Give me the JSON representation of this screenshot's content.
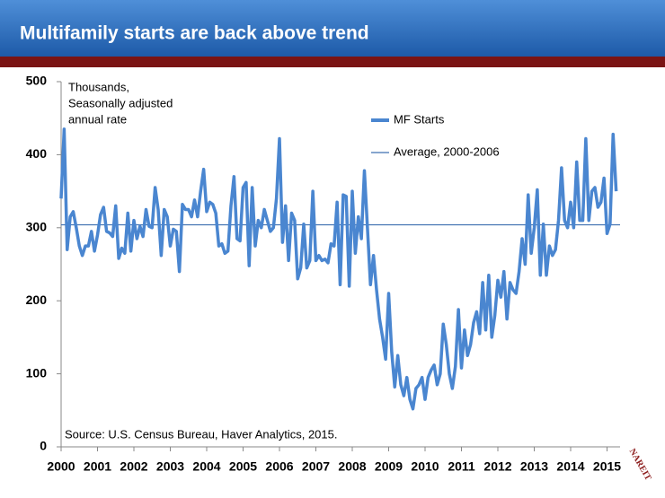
{
  "chart_data": {
    "type": "line",
    "title": "Multifamily starts are back above trend",
    "annotation": [
      "Thousands,",
      "Seasonally adjusted",
      "annual rate"
    ],
    "source": "Source: U.S. Census Bureau, Haver Analytics, 2015.",
    "logo": "NAREIT",
    "categories": [
      "2000",
      null,
      null,
      null,
      null,
      null,
      null,
      null,
      null,
      null,
      null,
      null,
      "2001",
      null,
      null,
      null,
      null,
      null,
      null,
      null,
      null,
      null,
      null,
      null,
      "2002",
      null,
      null,
      null,
      null,
      null,
      null,
      null,
      null,
      null,
      null,
      null,
      "2003",
      null,
      null,
      null,
      null,
      null,
      null,
      null,
      null,
      null,
      null,
      null,
      "2004",
      null,
      null,
      null,
      null,
      null,
      null,
      null,
      null,
      null,
      null,
      null,
      "2005",
      null,
      null,
      null,
      null,
      null,
      null,
      null,
      null,
      null,
      null,
      null,
      "2006",
      null,
      null,
      null,
      null,
      null,
      null,
      null,
      null,
      null,
      null,
      null,
      "2007",
      null,
      null,
      null,
      null,
      null,
      null,
      null,
      null,
      null,
      null,
      null,
      "2008",
      null,
      null,
      null,
      null,
      null,
      null,
      null,
      null,
      null,
      null,
      null,
      "2009",
      null,
      null,
      null,
      null,
      null,
      null,
      null,
      null,
      null,
      null,
      null,
      "2010",
      null,
      null,
      null,
      null,
      null,
      null,
      null,
      null,
      null,
      null,
      null,
      "2011",
      null,
      null,
      null,
      null,
      null,
      null,
      null,
      null,
      null,
      null,
      null,
      "2012",
      null,
      null,
      null,
      null,
      null,
      null,
      null,
      null,
      null,
      null,
      null,
      "2013",
      null,
      null,
      null,
      null,
      null,
      null,
      null,
      null,
      null,
      null,
      null,
      "2014",
      null,
      null,
      null,
      null,
      null,
      null,
      null,
      null,
      null,
      null,
      null,
      "2015",
      null,
      null,
      null
    ],
    "series": [
      {
        "name": "MF Starts",
        "color": "#4a86d0",
        "values": [
          340,
          435,
          270,
          315,
          322,
          300,
          275,
          262,
          275,
          275,
          295,
          268,
          290,
          318,
          328,
          295,
          293,
          288,
          330,
          258,
          272,
          265,
          320,
          268,
          310,
          285,
          302,
          288,
          325,
          302,
          300,
          355,
          325,
          262,
          325,
          315,
          275,
          298,
          295,
          240,
          332,
          325,
          325,
          315,
          338,
          315,
          350,
          380,
          322,
          335,
          332,
          320,
          275,
          278,
          265,
          268,
          330,
          370,
          285,
          282,
          355,
          362,
          248,
          355,
          275,
          310,
          300,
          325,
          310,
          295,
          300,
          340,
          422,
          280,
          330,
          255,
          320,
          310,
          230,
          245,
          305,
          245,
          255,
          350,
          255,
          262,
          255,
          257,
          252,
          278,
          275,
          335,
          222,
          345,
          343,
          220,
          350,
          265,
          315,
          285,
          378,
          300,
          222,
          262,
          215,
          175,
          150,
          120,
          210,
          130,
          82,
          125,
          85,
          70,
          95,
          65,
          52,
          80,
          85,
          95,
          65,
          95,
          105,
          112,
          85,
          100,
          168,
          140,
          100,
          80,
          110,
          188,
          108,
          160,
          125,
          140,
          170,
          185,
          155,
          225,
          160,
          235,
          150,
          180,
          228,
          205,
          240,
          175,
          225,
          215,
          210,
          240,
          285,
          250,
          345,
          265,
          300,
          352,
          235,
          305,
          235,
          275,
          262,
          270,
          310,
          382,
          310,
          300,
          335,
          300,
          390,
          310,
          310,
          422,
          310,
          350,
          355,
          328,
          335,
          368,
          292,
          305,
          428,
          350
        ]
      }
    ],
    "reference_lines": [
      {
        "name": "Average, 2000-2006",
        "value": 304,
        "color": "#3d6fb0"
      }
    ],
    "ylim": [
      0,
      500
    ],
    "yticks": [
      0,
      100,
      200,
      300,
      400,
      500
    ],
    "grid": false
  }
}
